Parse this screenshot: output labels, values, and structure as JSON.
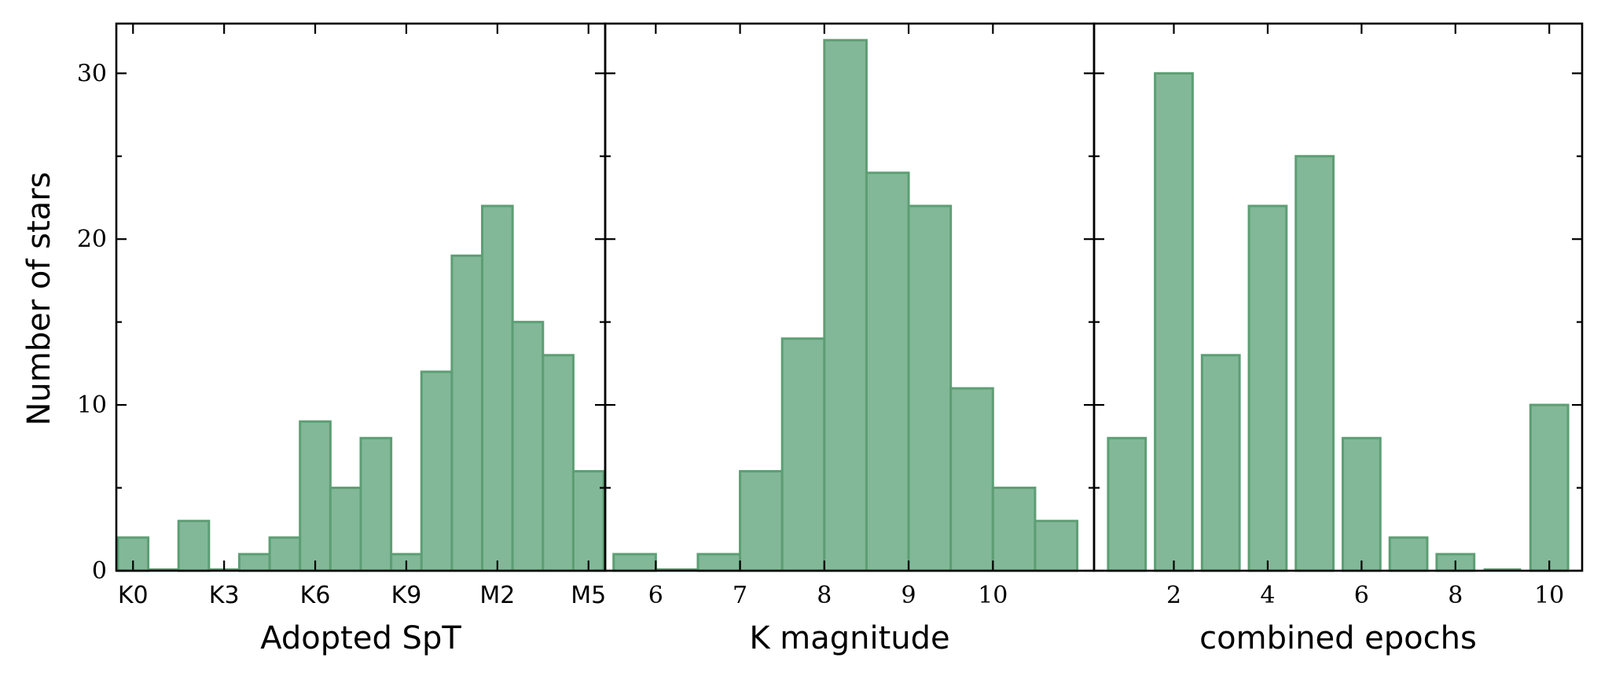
{
  "colors": {
    "bar_fill": "#82b898",
    "bar_edge": "#5d9e74"
  },
  "chart_data": [
    {
      "type": "bar",
      "xlabel": "Adopted SpT",
      "ylabel": "Number of stars",
      "ylim": [
        0,
        33
      ],
      "yticks": [
        0,
        10,
        20,
        30
      ],
      "x_range": [
        -0.55,
        15.55
      ],
      "xticks": [
        {
          "pos": 0,
          "label": "K0"
        },
        {
          "pos": 3,
          "label": "K3"
        },
        {
          "pos": 6,
          "label": "K6"
        },
        {
          "pos": 9,
          "label": "K9"
        },
        {
          "pos": 12,
          "label": "M2"
        },
        {
          "pos": 15,
          "label": "M5"
        }
      ],
      "bars": [
        {
          "x0": -0.5,
          "x1": 0.5,
          "value": 2
        },
        {
          "x0": 0.5,
          "x1": 1.5,
          "value": 0
        },
        {
          "x0": 1.5,
          "x1": 2.5,
          "value": 3
        },
        {
          "x0": 2.5,
          "x1": 3.5,
          "value": 0
        },
        {
          "x0": 3.5,
          "x1": 4.5,
          "value": 1
        },
        {
          "x0": 4.5,
          "x1": 5.5,
          "value": 2
        },
        {
          "x0": 5.5,
          "x1": 6.5,
          "value": 9
        },
        {
          "x0": 6.5,
          "x1": 7.5,
          "value": 5
        },
        {
          "x0": 7.5,
          "x1": 8.5,
          "value": 8
        },
        {
          "x0": 8.5,
          "x1": 9.5,
          "value": 1
        },
        {
          "x0": 9.5,
          "x1": 10.5,
          "value": 12
        },
        {
          "x0": 10.5,
          "x1": 11.5,
          "value": 19
        },
        {
          "x0": 11.5,
          "x1": 12.5,
          "value": 22
        },
        {
          "x0": 12.5,
          "x1": 13.5,
          "value": 15
        },
        {
          "x0": 13.5,
          "x1": 14.5,
          "value": 13
        },
        {
          "x0": 14.5,
          "x1": 15.5,
          "value": 6
        }
      ]
    },
    {
      "type": "bar",
      "xlabel": "K magnitude",
      "ylim": [
        0,
        33
      ],
      "yticks": [
        0,
        10,
        20,
        30
      ],
      "x_range": [
        5.4,
        11.2
      ],
      "xticks": [
        {
          "pos": 6,
          "label": "6"
        },
        {
          "pos": 7,
          "label": "7"
        },
        {
          "pos": 8,
          "label": "8"
        },
        {
          "pos": 9,
          "label": "9"
        },
        {
          "pos": 10,
          "label": "10"
        }
      ],
      "bars": [
        {
          "x0": 5.5,
          "x1": 6.0,
          "value": 1
        },
        {
          "x0": 6.0,
          "x1": 6.5,
          "value": 0
        },
        {
          "x0": 6.5,
          "x1": 7.0,
          "value": 1
        },
        {
          "x0": 7.0,
          "x1": 7.5,
          "value": 6
        },
        {
          "x0": 7.5,
          "x1": 8.0,
          "value": 14
        },
        {
          "x0": 8.0,
          "x1": 8.5,
          "value": 32
        },
        {
          "x0": 8.5,
          "x1": 9.0,
          "value": 24
        },
        {
          "x0": 9.0,
          "x1": 9.5,
          "value": 22
        },
        {
          "x0": 9.5,
          "x1": 10.0,
          "value": 11
        },
        {
          "x0": 10.0,
          "x1": 10.5,
          "value": 5
        },
        {
          "x0": 10.5,
          "x1": 11.0,
          "value": 3
        }
      ]
    },
    {
      "type": "bar",
      "xlabel": "combined epochs",
      "ylim": [
        0,
        33
      ],
      "yticks": [
        0,
        10,
        20,
        30
      ],
      "x_range": [
        0.3,
        10.7
      ],
      "xticks": [
        {
          "pos": 2,
          "label": "2"
        },
        {
          "pos": 4,
          "label": "4"
        },
        {
          "pos": 6,
          "label": "6"
        },
        {
          "pos": 8,
          "label": "8"
        },
        {
          "pos": 10,
          "label": "10"
        }
      ],
      "bars": [
        {
          "x0": 0.6,
          "x1": 1.4,
          "value": 8
        },
        {
          "x0": 1.6,
          "x1": 2.4,
          "value": 30
        },
        {
          "x0": 2.6,
          "x1": 3.4,
          "value": 13
        },
        {
          "x0": 3.6,
          "x1": 4.4,
          "value": 22
        },
        {
          "x0": 4.6,
          "x1": 5.4,
          "value": 25
        },
        {
          "x0": 5.6,
          "x1": 6.4,
          "value": 8
        },
        {
          "x0": 6.6,
          "x1": 7.4,
          "value": 2
        },
        {
          "x0": 7.6,
          "x1": 8.4,
          "value": 1
        },
        {
          "x0": 8.6,
          "x1": 9.4,
          "value": 0
        },
        {
          "x0": 9.6,
          "x1": 10.4,
          "value": 10
        }
      ]
    }
  ]
}
